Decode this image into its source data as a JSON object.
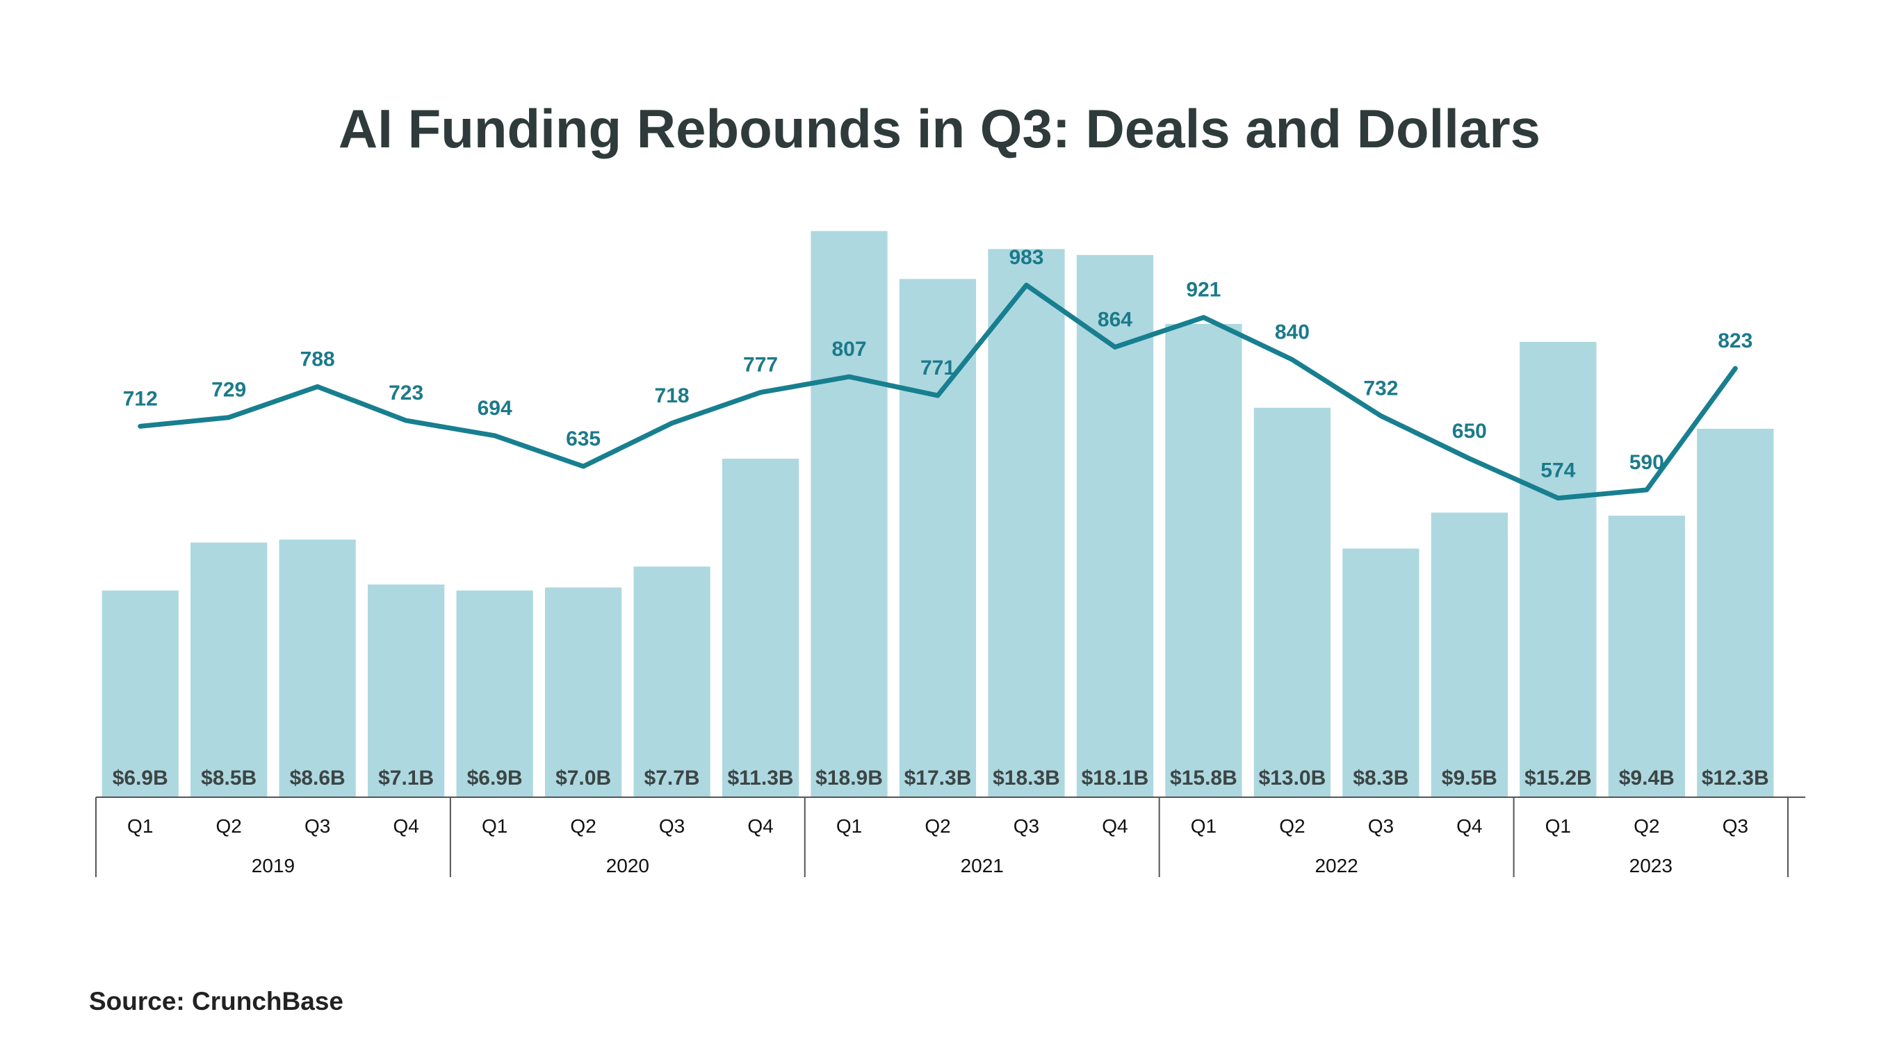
{
  "chart_data": {
    "type": "bar",
    "title": "AI Funding Rebounds in Q3: Deals and Dollars",
    "source": "Source: CrunchBase",
    "groups": [
      {
        "label": "2019",
        "quarters": [
          "Q1",
          "Q2",
          "Q3",
          "Q4"
        ]
      },
      {
        "label": "2020",
        "quarters": [
          "Q1",
          "Q2",
          "Q3",
          "Q4"
        ]
      },
      {
        "label": "2021",
        "quarters": [
          "Q1",
          "Q2",
          "Q3",
          "Q4"
        ]
      },
      {
        "label": "2022",
        "quarters": [
          "Q1",
          "Q2",
          "Q3",
          "Q4"
        ]
      },
      {
        "label": "2023",
        "quarters": [
          "Q1",
          "Q2",
          "Q3"
        ]
      }
    ],
    "series": [
      {
        "kind": "bar",
        "color": "#add8e0",
        "values": [
          6.9,
          8.5,
          8.6,
          7.1,
          6.9,
          7.0,
          7.7,
          11.3,
          18.9,
          17.3,
          18.3,
          18.1,
          15.8,
          13.0,
          8.3,
          9.5,
          15.2,
          9.4,
          12.3
        ],
        "labels": [
          "$6.9B",
          "$8.5B",
          "$8.6B",
          "$7.1B",
          "$6.9B",
          "$7.0B",
          "$7.7B",
          "$11.3B",
          "$18.9B",
          "$17.3B",
          "$18.3B",
          "$18.1B",
          "$15.8B",
          "$13.0B",
          "$8.3B",
          "$9.5B",
          "$15.2B",
          "$9.4B",
          "$12.3B"
        ]
      },
      {
        "kind": "line",
        "color": "#177f8f",
        "values": [
          712,
          729,
          788,
          723,
          694,
          635,
          718,
          777,
          807,
          771,
          983,
          864,
          921,
          840,
          732,
          650,
          574,
          590,
          823
        ],
        "labels": [
          "712",
          "729",
          "788",
          "723",
          "694",
          "635",
          "718",
          "777",
          "807",
          "771",
          "983",
          "864",
          "921",
          "840",
          "732",
          "650",
          "574",
          "590",
          "823"
        ]
      }
    ],
    "bar_ylim": [
      0,
      20
    ],
    "line_ylim": [
      0,
      1150
    ],
    "grid": false,
    "legend": "none"
  }
}
